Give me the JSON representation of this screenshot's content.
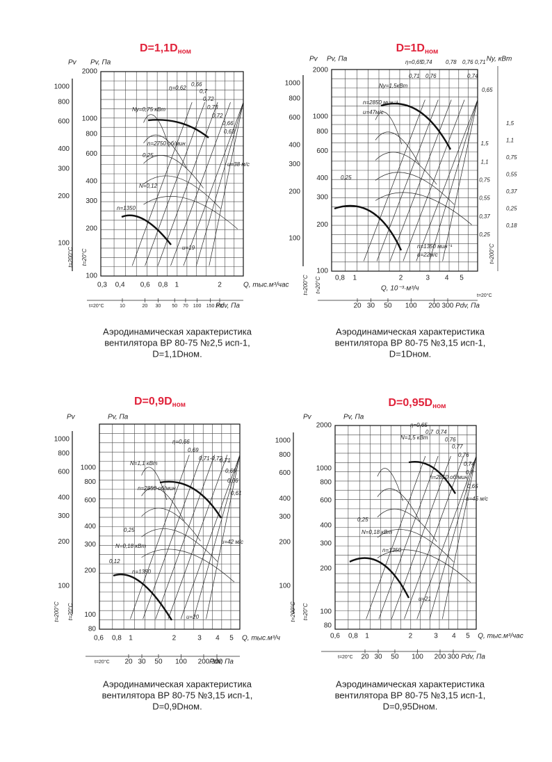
{
  "panels": [
    {
      "title": "D=1,1D",
      "title_sub": "ном",
      "pv_label": "Pv",
      "pv2_label": "Pv, Па",
      "left_ticks": [
        "1000",
        "800",
        "600",
        "400",
        "300",
        "200",
        "100"
      ],
      "grid_ticks": [
        "2000",
        "1000",
        "800",
        "600",
        "400",
        "300",
        "200",
        "100"
      ],
      "x_ticks": [
        "0,3",
        "0,4",
        "0,6",
        "0,8",
        "1",
        "2"
      ],
      "x_label": "Q, тыс.м³/час",
      "pdv_ticks": [
        "10",
        "20",
        "30",
        "50",
        "70",
        "100",
        "150",
        "200"
      ],
      "pdv_label": "Pdv, Па",
      "temp_hot": "t=200°C",
      "temp_cold": "t=20°C",
      "temp_pdv": "t=20°C",
      "annotations": [
        "η=0,62",
        "0,66",
        "0,7",
        "0,72",
        "0,73",
        "0,72",
        "0,66",
        "0,62",
        "Ny=0,75 кВт",
        "n=2750 об/мин",
        "0,25",
        "u=38 м/с",
        "N=0,12",
        "n=1350",
        "u=19"
      ],
      "caption": [
        "Аэродинамическая характеристика",
        "вентилятора ВР 80-75 №2,5 исп-1,",
        "D=1,1Dном."
      ]
    },
    {
      "title": "D=1D",
      "title_sub": "ном",
      "pv_label": "Pv",
      "pv2_label": "Pv, Па",
      "ny_label": "Ny, кВт",
      "left_ticks": [
        "1000",
        "800",
        "600",
        "400",
        "300",
        "200",
        "100"
      ],
      "grid_ticks": [
        "2000",
        "1000",
        "800",
        "600",
        "400",
        "300",
        "200",
        "100"
      ],
      "ny_outer_ticks": [
        "1,5",
        "1,1",
        "0,75",
        "0,55",
        "0,37",
        "0,25",
        "0,18"
      ],
      "ny_inner_ticks": [
        "1,5",
        "1,1",
        "0,75",
        "0,55",
        "0,37",
        "0,25"
      ],
      "x_ticks": [
        "0,8",
        "1",
        "2",
        "3",
        "4",
        "5"
      ],
      "x_label": "Q, 10⁻³·м³/ч",
      "pdv_ticks": [
        "20",
        "30",
        "50",
        "100",
        "200",
        "300"
      ],
      "pdv_label": "Pdv, Па",
      "temp_hot": "t=200°C",
      "temp_cold": "t=20°C",
      "temp_pdv": "t=20°C",
      "temp_right": "t=200°C",
      "annotations": [
        "η=0,65",
        "0,74",
        "0,78",
        "0,76",
        "0,71",
        "0,71",
        "0,76",
        "0,74",
        "0,65",
        "Ny=1,5кВт",
        "n=2850 мин⁻¹",
        "u=47м/с",
        "0,25",
        "n=1350 мин⁻¹",
        "u=22м/с"
      ],
      "caption": [
        "Аэродинамическая характеристика",
        "вентилятора ВР 80-75 №3,15 исп-1,",
        "D=1Dном."
      ]
    },
    {
      "title": "D=0,9D",
      "title_sub": "ном",
      "pv_label": "Pv",
      "pv2_label": "Pv, Па",
      "left_ticks": [
        "1000",
        "800",
        "600",
        "400",
        "300",
        "200",
        "100"
      ],
      "grid_ticks": [
        "1000",
        "800",
        "600",
        "400",
        "300",
        "200",
        "100",
        "80"
      ],
      "x_ticks": [
        "0,6",
        "0,8",
        "1",
        "2",
        "3",
        "4",
        "5"
      ],
      "x_label": "Q, тыс.м³/ч",
      "pdv_ticks": [
        "20",
        "30",
        "50",
        "100",
        "200",
        "300"
      ],
      "pdv_label": "Pdv, Па",
      "temp_hot": "t=200°C",
      "temp_cold": "t=20°C",
      "temp_pdv": "t=20°C",
      "annotations": [
        "η=0,66",
        "0,69",
        "0,71-0,72",
        "0,71",
        "0,69",
        "0,66",
        "0,61",
        "N=1,1 кВт",
        "n=2850 об/мин",
        "0,25",
        "N=0,18 кВт",
        "0,12",
        "n=1350",
        "u=42 м/с",
        "u=20"
      ],
      "caption": [
        "Аэродинамическая характеристика",
        "вентилятора ВР 80-75 №3,15 исп-1,",
        "D=0,9Dном."
      ]
    },
    {
      "title": "D=0,95D",
      "title_sub": "ном",
      "pv_label": "Pv",
      "pv2_label": "Pv, Па",
      "left_ticks": [
        "1000",
        "800",
        "600",
        "400",
        "300",
        "200",
        "100"
      ],
      "grid_ticks": [
        "2000",
        "1000",
        "800",
        "600",
        "400",
        "300",
        "200",
        "100",
        "80"
      ],
      "x_ticks": [
        "0,6",
        "0,8",
        "1",
        "2",
        "3",
        "4",
        "5"
      ],
      "x_label": "Q, тыс.м³/час",
      "pdv_ticks": [
        "20",
        "30",
        "50",
        "100",
        "200",
        "300"
      ],
      "pdv_label": "Pdv, Па",
      "temp_hot": "t=200°C",
      "temp_cold": "t=20°C",
      "temp_pdv": "t=20°C",
      "annotations": [
        "η=0,65",
        "0,7",
        "0,74",
        "N=1,5 кВт",
        "0,76",
        "0,77",
        "0,76",
        "0,74",
        "0,7",
        "0,65",
        "n=2850 об/мин",
        "u=45 м/с",
        "0,25",
        "N=0,18 кВт",
        "n=1350",
        "u=21"
      ],
      "caption": [
        "Аэродинамическая характеристика",
        "вентилятора ВР 80-75 №3,15 исп-1,",
        "D=0,95Dном."
      ]
    }
  ]
}
